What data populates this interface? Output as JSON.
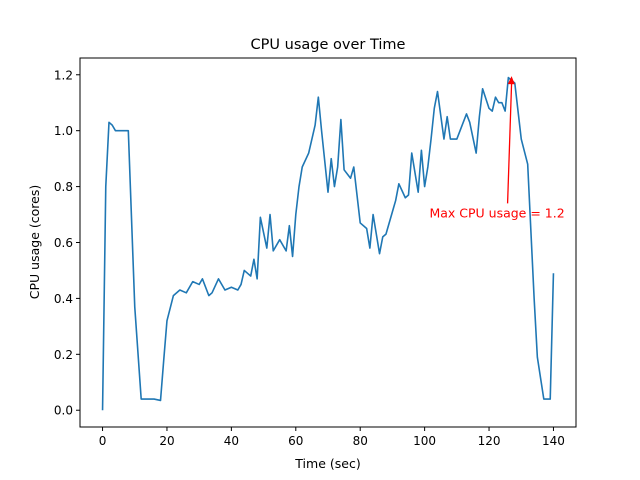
{
  "chart_data": {
    "type": "line",
    "title": "CPU usage over Time",
    "xlabel": "Time (sec)",
    "ylabel": "CPU usage (cores)",
    "xlim": [
      -7,
      147
    ],
    "ylim": [
      -0.06,
      1.26
    ],
    "xticks": [
      0,
      20,
      40,
      60,
      80,
      100,
      120,
      140
    ],
    "yticks": [
      0.0,
      0.2,
      0.4,
      0.6,
      0.8,
      1.0,
      1.2
    ],
    "ytick_labels": [
      "0.0",
      "0.2",
      "0.4",
      "0.6",
      "0.8",
      "1.0",
      "1.2"
    ],
    "grid": false,
    "legend": "none",
    "series": [
      {
        "color": "#1f77b4",
        "x": [
          0,
          1,
          2,
          3,
          4,
          6,
          8,
          10,
          12,
          14,
          16,
          18,
          19,
          20,
          22,
          24,
          26,
          28,
          30,
          31,
          33,
          34,
          36,
          38,
          40,
          42,
          43,
          44,
          46,
          47,
          48,
          49,
          51,
          52,
          53,
          55,
          57,
          58,
          59,
          60,
          61,
          62,
          64,
          66,
          67,
          68,
          70,
          71,
          72,
          73,
          74,
          75,
          77,
          78,
          80,
          82,
          83,
          84,
          86,
          87,
          88,
          90,
          91,
          92,
          94,
          95,
          96,
          98,
          99,
          100,
          101,
          102,
          103,
          104,
          106,
          107,
          108,
          109,
          110,
          111,
          113,
          114,
          116,
          117,
          118,
          120,
          121,
          122,
          123,
          124,
          125,
          126,
          127,
          128,
          129,
          130,
          132,
          134,
          135,
          137,
          138,
          139,
          140
        ],
        "values": [
          0.0,
          0.8,
          1.03,
          1.02,
          1.0,
          1.0,
          1.0,
          0.37,
          0.04,
          0.04,
          0.04,
          0.035,
          0.18,
          0.32,
          0.41,
          0.43,
          0.42,
          0.46,
          0.45,
          0.47,
          0.41,
          0.42,
          0.47,
          0.43,
          0.44,
          0.43,
          0.45,
          0.5,
          0.48,
          0.54,
          0.47,
          0.69,
          0.58,
          0.7,
          0.57,
          0.61,
          0.57,
          0.66,
          0.55,
          0.7,
          0.8,
          0.87,
          0.92,
          1.02,
          1.12,
          1.0,
          0.78,
          0.9,
          0.8,
          0.87,
          1.04,
          0.86,
          0.83,
          0.87,
          0.67,
          0.65,
          0.58,
          0.7,
          0.56,
          0.62,
          0.63,
          0.71,
          0.75,
          0.81,
          0.76,
          0.77,
          0.92,
          0.78,
          0.93,
          0.8,
          0.87,
          0.97,
          1.08,
          1.14,
          0.97,
          1.05,
          0.97,
          0.97,
          0.97,
          1.0,
          1.06,
          1.03,
          0.92,
          1.05,
          1.15,
          1.08,
          1.07,
          1.12,
          1.1,
          1.1,
          1.07,
          1.19,
          1.18,
          1.17,
          1.07,
          0.97,
          0.88,
          0.4,
          0.19,
          0.04,
          0.04,
          0.04,
          0.49
        ]
      }
    ],
    "annotation": {
      "text": "Max CPU usage = 1.2",
      "color": "#ff0000",
      "point": [
        127,
        1.195
      ],
      "text_pos": [
        101.5,
        0.69
      ]
    }
  }
}
